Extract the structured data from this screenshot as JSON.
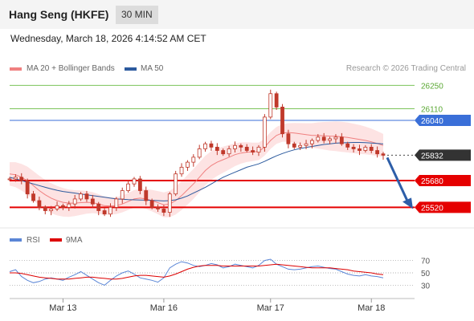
{
  "header": {
    "title": "Hang Seng (HKFE)",
    "timeframe": "30 MIN"
  },
  "datetime": "Wednesday, March 18, 2026 4:14:52 AM CET",
  "legend": {
    "items": [
      {
        "label": "MA 20 + Bollinger Bands",
        "color": "#f08080"
      },
      {
        "label": "MA 50",
        "color": "#2c5a9e"
      }
    ],
    "credit": "Research © 2026 Trading Central"
  },
  "colors": {
    "candle": "#c0392b",
    "support": "#e50000",
    "pivot": "#3a6fd8",
    "resistance": "#7cc35a",
    "current": "#333333",
    "arrow": "#2d5ea8",
    "band": "#fde3e3"
  },
  "chart_data": [
    {
      "type": "line",
      "title": "Hang Seng (HKFE)",
      "timeframe": "30 MIN",
      "x_ticks": [
        "Mar 13",
        "Mar 16",
        "Mar 17",
        "Mar 18"
      ],
      "ylim": [
        25440,
        26290
      ],
      "levels": [
        {
          "value": 26250,
          "label": "26250",
          "kind": "resistance"
        },
        {
          "value": 26110,
          "label": "26110",
          "kind": "resistance"
        },
        {
          "value": 26040,
          "label": "26040",
          "kind": "pivot"
        },
        {
          "value": 25832,
          "label": "25832",
          "kind": "last"
        },
        {
          "value": 25680,
          "label": "25680",
          "kind": "support"
        },
        {
          "value": 25520,
          "label": "25520",
          "kind": "support"
        }
      ],
      "series": [
        {
          "name": "MA 20 + Bollinger Bands",
          "color": "#f08080"
        },
        {
          "name": "MA 50",
          "color": "#2c5a9e"
        }
      ],
      "price": [
        25690,
        25700,
        25680,
        25600,
        25560,
        25520,
        25500,
        25510,
        25530,
        25520,
        25540,
        25570,
        25600,
        25570,
        25540,
        25500,
        25480,
        25520,
        25570,
        25620,
        25660,
        25690,
        25620,
        25560,
        25520,
        25510,
        25490,
        25600,
        25720,
        25760,
        25790,
        25820,
        25870,
        25900,
        25880,
        25860,
        25840,
        25870,
        25890,
        25880,
        25860,
        25850,
        25880,
        26060,
        26200,
        26120,
        25960,
        25900,
        25880,
        25890,
        25900,
        25920,
        25940,
        25920,
        25930,
        25940,
        25900,
        25880,
        25870,
        25860,
        25880,
        25860,
        25840,
        25832
      ],
      "ma20": [
        25720,
        25715,
        25700,
        25680,
        25650,
        25620,
        25595,
        25575,
        25560,
        25550,
        25545,
        25545,
        25548,
        25550,
        25548,
        25540,
        25530,
        25528,
        25530,
        25540,
        25555,
        25570,
        25575,
        25570,
        25560,
        25548,
        25535,
        25540,
        25560,
        25590,
        25625,
        25660,
        25700,
        25740,
        25770,
        25790,
        25805,
        25820,
        25835,
        25845,
        25850,
        25852,
        25855,
        25880,
        25920,
        25950,
        25965,
        25968,
        25965,
        25960,
        25955,
        25950,
        25950,
        25948,
        25946,
        25945,
        25942,
        25938,
        25932,
        25926,
        25920,
        25912,
        25902,
        25890
      ],
      "ma50": [
        25700,
        25690,
        25680,
        25670,
        25660,
        25650,
        25640,
        25630,
        25622,
        25615,
        25610,
        25605,
        25600,
        25595,
        25590,
        25585,
        25580,
        25575,
        25570,
        25568,
        25566,
        25565,
        25564,
        25563,
        25562,
        25560,
        25558,
        25560,
        25565,
        25575,
        25588,
        25605,
        25622,
        25640,
        25660,
        25680,
        25700,
        25715,
        25730,
        25745,
        25760,
        25770,
        25780,
        25795,
        25812,
        25828,
        25842,
        25854,
        25864,
        25872,
        25878,
        25884,
        25890,
        25896,
        25900,
        25904,
        25906,
        25907,
        25908,
        25908,
        25907,
        25905,
        25902,
        25899
      ]
    },
    {
      "type": "line",
      "title": "",
      "ylim": [
        15,
        85
      ],
      "y_ticks": [
        70,
        50,
        30
      ],
      "series": [
        {
          "name": "RSI",
          "color": "#5b86d6",
          "values": [
            52,
            55,
            44,
            38,
            34,
            36,
            40,
            42,
            40,
            38,
            43,
            47,
            52,
            46,
            40,
            34,
            30,
            38,
            45,
            50,
            53,
            48,
            42,
            40,
            38,
            35,
            42,
            58,
            64,
            68,
            66,
            62,
            60,
            62,
            65,
            63,
            58,
            60,
            64,
            62,
            60,
            58,
            62,
            70,
            72,
            64,
            60,
            56,
            55,
            56,
            58,
            60,
            61,
            59,
            57,
            56,
            52,
            48,
            46,
            45,
            47,
            45,
            44,
            42
          ]
        },
        {
          "name": "9MA",
          "color": "#dd0000",
          "values": [
            50,
            50,
            49,
            47,
            45,
            43,
            42,
            41,
            40,
            40,
            40,
            41,
            42,
            43,
            43,
            42,
            41,
            40,
            40,
            41,
            43,
            45,
            46,
            46,
            45,
            44,
            43,
            45,
            48,
            52,
            56,
            59,
            61,
            62,
            62,
            62,
            61,
            61,
            61,
            61,
            61,
            61,
            61,
            62,
            63,
            64,
            63,
            62,
            61,
            60,
            59,
            58,
            58,
            58,
            58,
            57,
            56,
            55,
            53,
            52,
            51,
            50,
            48,
            47
          ]
        }
      ],
      "legend": [
        "RSI",
        "9MA"
      ]
    }
  ]
}
